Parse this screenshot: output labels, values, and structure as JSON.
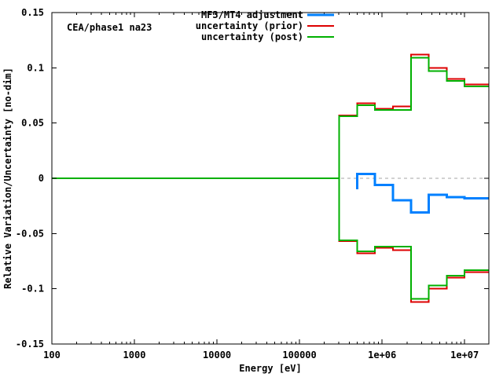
{
  "chart_data": {
    "type": "line",
    "subtype": "step-histogram",
    "annotation": "CEA/phase1 na23",
    "xlabel": "Energy [eV]",
    "ylabel": "Relative Variation/Uncertainty [no-dim]",
    "x_scale": "log",
    "xlim": [
      100,
      19640000
    ],
    "ylim": [
      -0.15,
      0.15
    ],
    "grid": false,
    "zero_line": {
      "value": 0,
      "color": "#a6a6a6",
      "style": "dashed"
    },
    "x_ticks": [
      {
        "value": 100,
        "label": "100"
      },
      {
        "value": 1000,
        "label": "1000"
      },
      {
        "value": 10000,
        "label": "10000"
      },
      {
        "value": 100000,
        "label": "100000"
      },
      {
        "value": 1000000,
        "label": "1e+06"
      },
      {
        "value": 10000000,
        "label": "1e+07"
      }
    ],
    "y_ticks": [
      {
        "value": 0.15,
        "label": "0.15"
      },
      {
        "value": 0.1,
        "label": "0.1"
      },
      {
        "value": 0.05,
        "label": "0.05"
      },
      {
        "value": 0,
        "label": "0"
      },
      {
        "value": -0.05,
        "label": "-0.05"
      },
      {
        "value": -0.1,
        "label": "-0.1"
      },
      {
        "value": -0.15,
        "label": "-0.15"
      }
    ],
    "legend_position": "top-right-inside",
    "series": [
      {
        "name": "MF3/MT4 adjustment",
        "color": "#0080ff",
        "stroke_width": 3,
        "z": 3,
        "mirror": false,
        "lead_in_value": -0.01,
        "boundaries": [
          497870,
          820850,
          1353400,
          2231300,
          3678800,
          6065300,
          10000000,
          19640000
        ],
        "values": [
          0.004,
          -0.006,
          -0.02,
          -0.031,
          -0.015,
          -0.017,
          -0.018
        ]
      },
      {
        "name": "uncertainty (prior)",
        "color": "#dd0000",
        "stroke_width": 2,
        "z": 1,
        "mirror": true,
        "zero_before_first_boundary": true,
        "boundaries": [
          301970,
          497870,
          820850,
          1353400,
          2231300,
          3678800,
          6065300,
          10000000,
          19640000
        ],
        "values": [
          0.057,
          0.068,
          0.063,
          0.065,
          0.112,
          0.1,
          0.09,
          0.085
        ]
      },
      {
        "name": "uncertainty (post)",
        "color": "#00b000",
        "stroke_width": 2,
        "z": 2,
        "mirror": true,
        "zero_before_first_boundary": true,
        "boundaries": [
          301970,
          497870,
          820850,
          1353400,
          2231300,
          3678800,
          6065300,
          10000000,
          19640000
        ],
        "values": [
          0.056,
          0.066,
          0.062,
          0.062,
          0.109,
          0.097,
          0.088,
          0.083
        ]
      }
    ]
  }
}
